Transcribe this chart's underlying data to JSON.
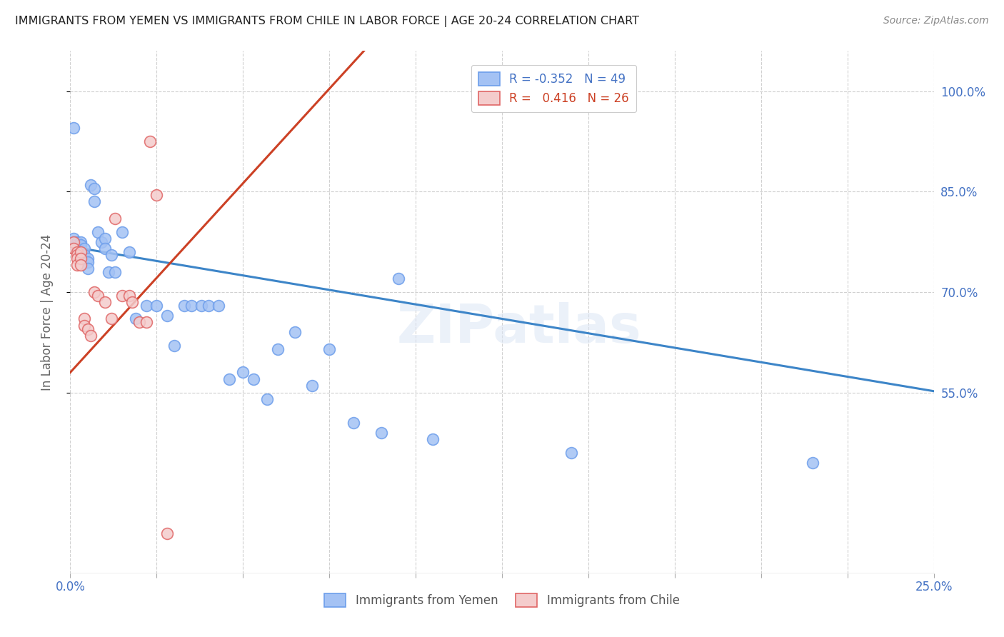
{
  "title": "IMMIGRANTS FROM YEMEN VS IMMIGRANTS FROM CHILE IN LABOR FORCE | AGE 20-24 CORRELATION CHART",
  "source": "Source: ZipAtlas.com",
  "ylabel": "In Labor Force | Age 20-24",
  "xlim": [
    0.0,
    0.25
  ],
  "ylim": [
    0.28,
    1.06
  ],
  "xticks": [
    0.0,
    0.025,
    0.05,
    0.075,
    0.1,
    0.125,
    0.15,
    0.175,
    0.2,
    0.225,
    0.25
  ],
  "yticks": [
    0.55,
    0.7,
    0.85,
    1.0
  ],
  "yticklabels": [
    "55.0%",
    "70.0%",
    "85.0%",
    "100.0%"
  ],
  "yemen_color": "#a4c2f4",
  "chile_color": "#f4cccc",
  "yemen_edge_color": "#6d9eeb",
  "chile_edge_color": "#e06666",
  "yemen_line_color": "#3d85c8",
  "chile_line_color": "#cc4125",
  "legend_R_yemen": "-0.352",
  "legend_N_yemen": "49",
  "legend_R_chile": "0.416",
  "legend_N_chile": "26",
  "watermark": "ZIPatlas",
  "background_color": "#ffffff",
  "yemen_trend_x0": 0.0,
  "yemen_trend_y0": 0.768,
  "yemen_trend_x1": 0.25,
  "yemen_trend_y1": 0.552,
  "chile_trend_x0": 0.0,
  "chile_trend_y0": 0.58,
  "chile_trend_x1": 0.085,
  "chile_trend_y1": 1.06,
  "yemen_x": [
    0.001,
    0.001,
    0.002,
    0.002,
    0.002,
    0.003,
    0.003,
    0.003,
    0.004,
    0.004,
    0.005,
    0.005,
    0.005,
    0.006,
    0.007,
    0.007,
    0.008,
    0.009,
    0.01,
    0.01,
    0.011,
    0.012,
    0.013,
    0.015,
    0.017,
    0.019,
    0.022,
    0.025,
    0.028,
    0.03,
    0.033,
    0.035,
    0.038,
    0.04,
    0.043,
    0.046,
    0.05,
    0.053,
    0.057,
    0.06,
    0.065,
    0.07,
    0.075,
    0.082,
    0.09,
    0.095,
    0.105,
    0.145,
    0.215
  ],
  "yemen_y": [
    0.945,
    0.78,
    0.775,
    0.77,
    0.765,
    0.775,
    0.77,
    0.76,
    0.765,
    0.755,
    0.75,
    0.745,
    0.735,
    0.86,
    0.855,
    0.835,
    0.79,
    0.775,
    0.78,
    0.765,
    0.73,
    0.755,
    0.73,
    0.79,
    0.76,
    0.66,
    0.68,
    0.68,
    0.665,
    0.62,
    0.68,
    0.68,
    0.68,
    0.68,
    0.68,
    0.57,
    0.58,
    0.57,
    0.54,
    0.615,
    0.64,
    0.56,
    0.615,
    0.505,
    0.49,
    0.72,
    0.48,
    0.46,
    0.445
  ],
  "chile_x": [
    0.001,
    0.001,
    0.002,
    0.002,
    0.002,
    0.002,
    0.003,
    0.003,
    0.003,
    0.004,
    0.004,
    0.005,
    0.006,
    0.007,
    0.008,
    0.01,
    0.012,
    0.013,
    0.015,
    0.017,
    0.018,
    0.02,
    0.022,
    0.023,
    0.025,
    0.028
  ],
  "chile_y": [
    0.775,
    0.765,
    0.76,
    0.755,
    0.75,
    0.74,
    0.76,
    0.75,
    0.74,
    0.66,
    0.65,
    0.645,
    0.635,
    0.7,
    0.695,
    0.685,
    0.66,
    0.81,
    0.695,
    0.695,
    0.685,
    0.655,
    0.655,
    0.925,
    0.845,
    0.34
  ]
}
